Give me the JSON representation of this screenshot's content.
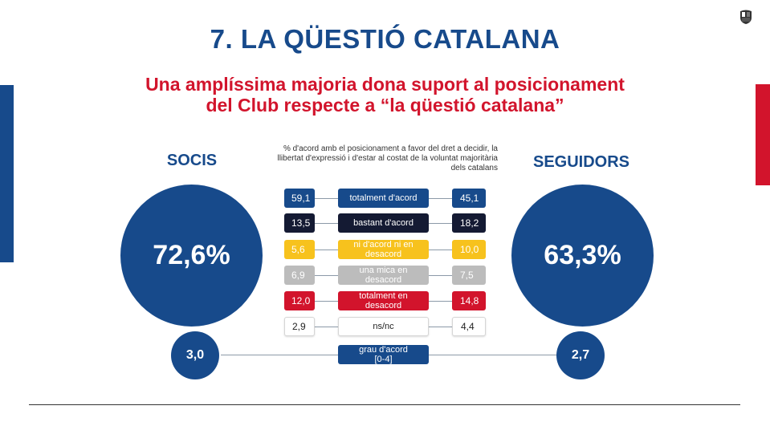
{
  "header": {
    "title": "7. LA QÜESTIÓ CATALANA",
    "subtitle_line1": "Una amplíssima majoria dona suport al posicionament",
    "subtitle_line2": "del Club respecte a “la qüestió catalana”"
  },
  "chart_data": {
    "type": "table",
    "note": "% d'acord amb el posicionament a favor del dret a decidir, la llibertat d'expressió i d'estar al costat de la voluntat majoritària dels catalans",
    "groups": [
      {
        "name": "SOCIS",
        "total_agree": "72,6%",
        "grau": "3,0"
      },
      {
        "name": "SEGUIDORS",
        "total_agree": "63,3%",
        "grau": "2,7"
      }
    ],
    "rows": [
      {
        "label": "totalment d'acord",
        "socis": "59,1",
        "seguidors": "45,1",
        "color": "#174a8b"
      },
      {
        "label": "bastant d'acord",
        "socis": "13,5",
        "seguidors": "18,2",
        "color": "#141a33"
      },
      {
        "label": "ni d'acord ni en desacord",
        "socis": "5,6",
        "seguidors": "10,0",
        "color": "#f7c21d"
      },
      {
        "label": "una mica en desacord",
        "socis": "6,9",
        "seguidors": "7,5",
        "color": "#bcbcbc"
      },
      {
        "label": "totalment en desacord",
        "socis": "12,0",
        "seguidors": "14,8",
        "color": "#d2142c"
      },
      {
        "label": "ns/nc",
        "socis": "2,9",
        "seguidors": "4,4",
        "color": "#ffffff"
      }
    ],
    "grau_label": "grau d'acord [0-4]",
    "grau_label_line1": "grau d'acord",
    "grau_label_line2": "[0-4]"
  },
  "colors": {
    "brand_blue": "#174a8b",
    "brand_red": "#d2142c"
  }
}
